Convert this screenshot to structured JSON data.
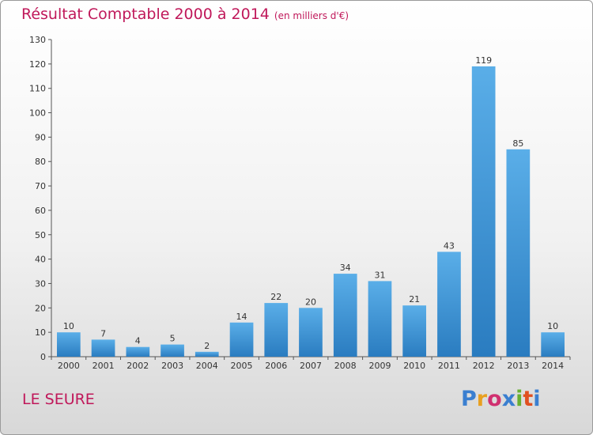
{
  "header": {
    "title": "Résultat Comptable 2000 à 2014",
    "unit": "(en milliers d'€)"
  },
  "footer": {
    "location": "LE SEURE",
    "logo_text": "Proxiti",
    "logo_colors": [
      "#3a7fd0",
      "#e8a020",
      "#d03070",
      "#3a7fd0",
      "#68b030",
      "#e05020",
      "#3a7fd0"
    ]
  },
  "colors": {
    "bar_light": "#5aaee8",
    "bar_dark": "#2a7cc0",
    "accent": "#c0185a"
  },
  "chart_data": {
    "type": "bar",
    "title": "Résultat Comptable 2000 à 2014",
    "subtitle": "(en milliers d'€)",
    "xlabel": "",
    "ylabel": "",
    "categories": [
      "2000",
      "2001",
      "2002",
      "2003",
      "2004",
      "2005",
      "2006",
      "2007",
      "2008",
      "2009",
      "2010",
      "2011",
      "2012",
      "2013",
      "2014"
    ],
    "values": [
      10,
      7,
      4,
      5,
      2,
      14,
      22,
      20,
      34,
      31,
      21,
      43,
      119,
      85,
      10
    ],
    "ylim": [
      0,
      130
    ],
    "yticks": [
      0,
      10,
      20,
      30,
      40,
      50,
      60,
      70,
      80,
      90,
      100,
      110,
      120,
      130
    ],
    "grid": false,
    "legend": "none",
    "data_labels": true
  }
}
